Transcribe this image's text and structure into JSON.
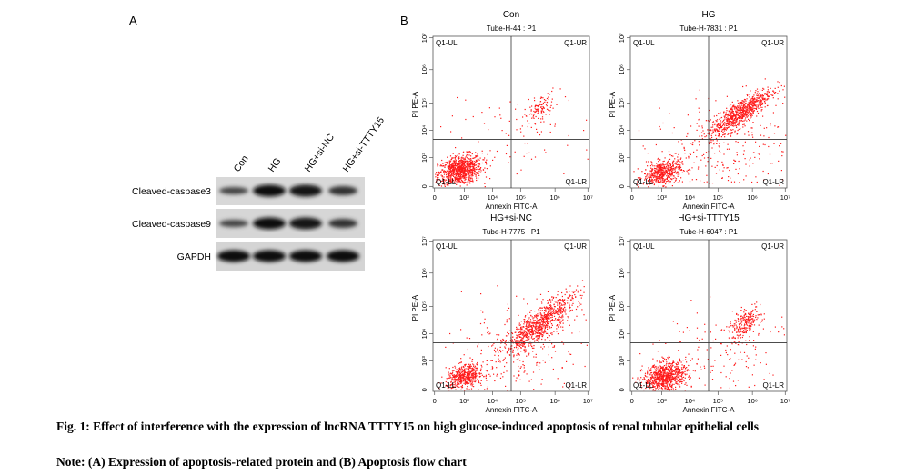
{
  "panel_a": {
    "label": "A",
    "lanes": [
      "Con",
      "HG",
      "HG+si-NC",
      "HG+si-TTTY15"
    ],
    "bands": [
      "Cleaved-caspase3",
      "Cleaved-caspase9",
      "GAPDH"
    ]
  },
  "panel_b": {
    "label": "B",
    "plots": [
      {
        "title": "Con",
        "subtitle": "Tube-H-44 : P1"
      },
      {
        "title": "HG",
        "subtitle": "Tube-H-7831 : P1"
      },
      {
        "title": "HG+si-NC",
        "subtitle": "Tube-H-7775 : P1"
      },
      {
        "title": "HG+si-TTTY15",
        "subtitle": "Tube-H-6047 : P1"
      }
    ],
    "x_axis_label": "Annexin FITC-A",
    "y_axis_label": "PI PE-A",
    "quadrants": [
      "Q1-UL",
      "Q1-UR",
      "Q1-LL",
      "Q1-LR"
    ],
    "x_ticks": [
      "0",
      "10³",
      "10⁴",
      "10⁵",
      "10⁶",
      "10⁷"
    ],
    "y_ticks": [
      "0",
      "10³",
      "10⁴",
      "10⁵",
      "10⁶",
      "10⁷"
    ]
  },
  "caption": {
    "title": "Fig. 1: Effect of interference with the expression of lncRNA TTTY15 on high glucose-induced apoptosis of renal tubular epithelial cells",
    "note": "Note: (A) Expression of apoptosis-related protein and (B) Apoptosis flow chart"
  }
}
